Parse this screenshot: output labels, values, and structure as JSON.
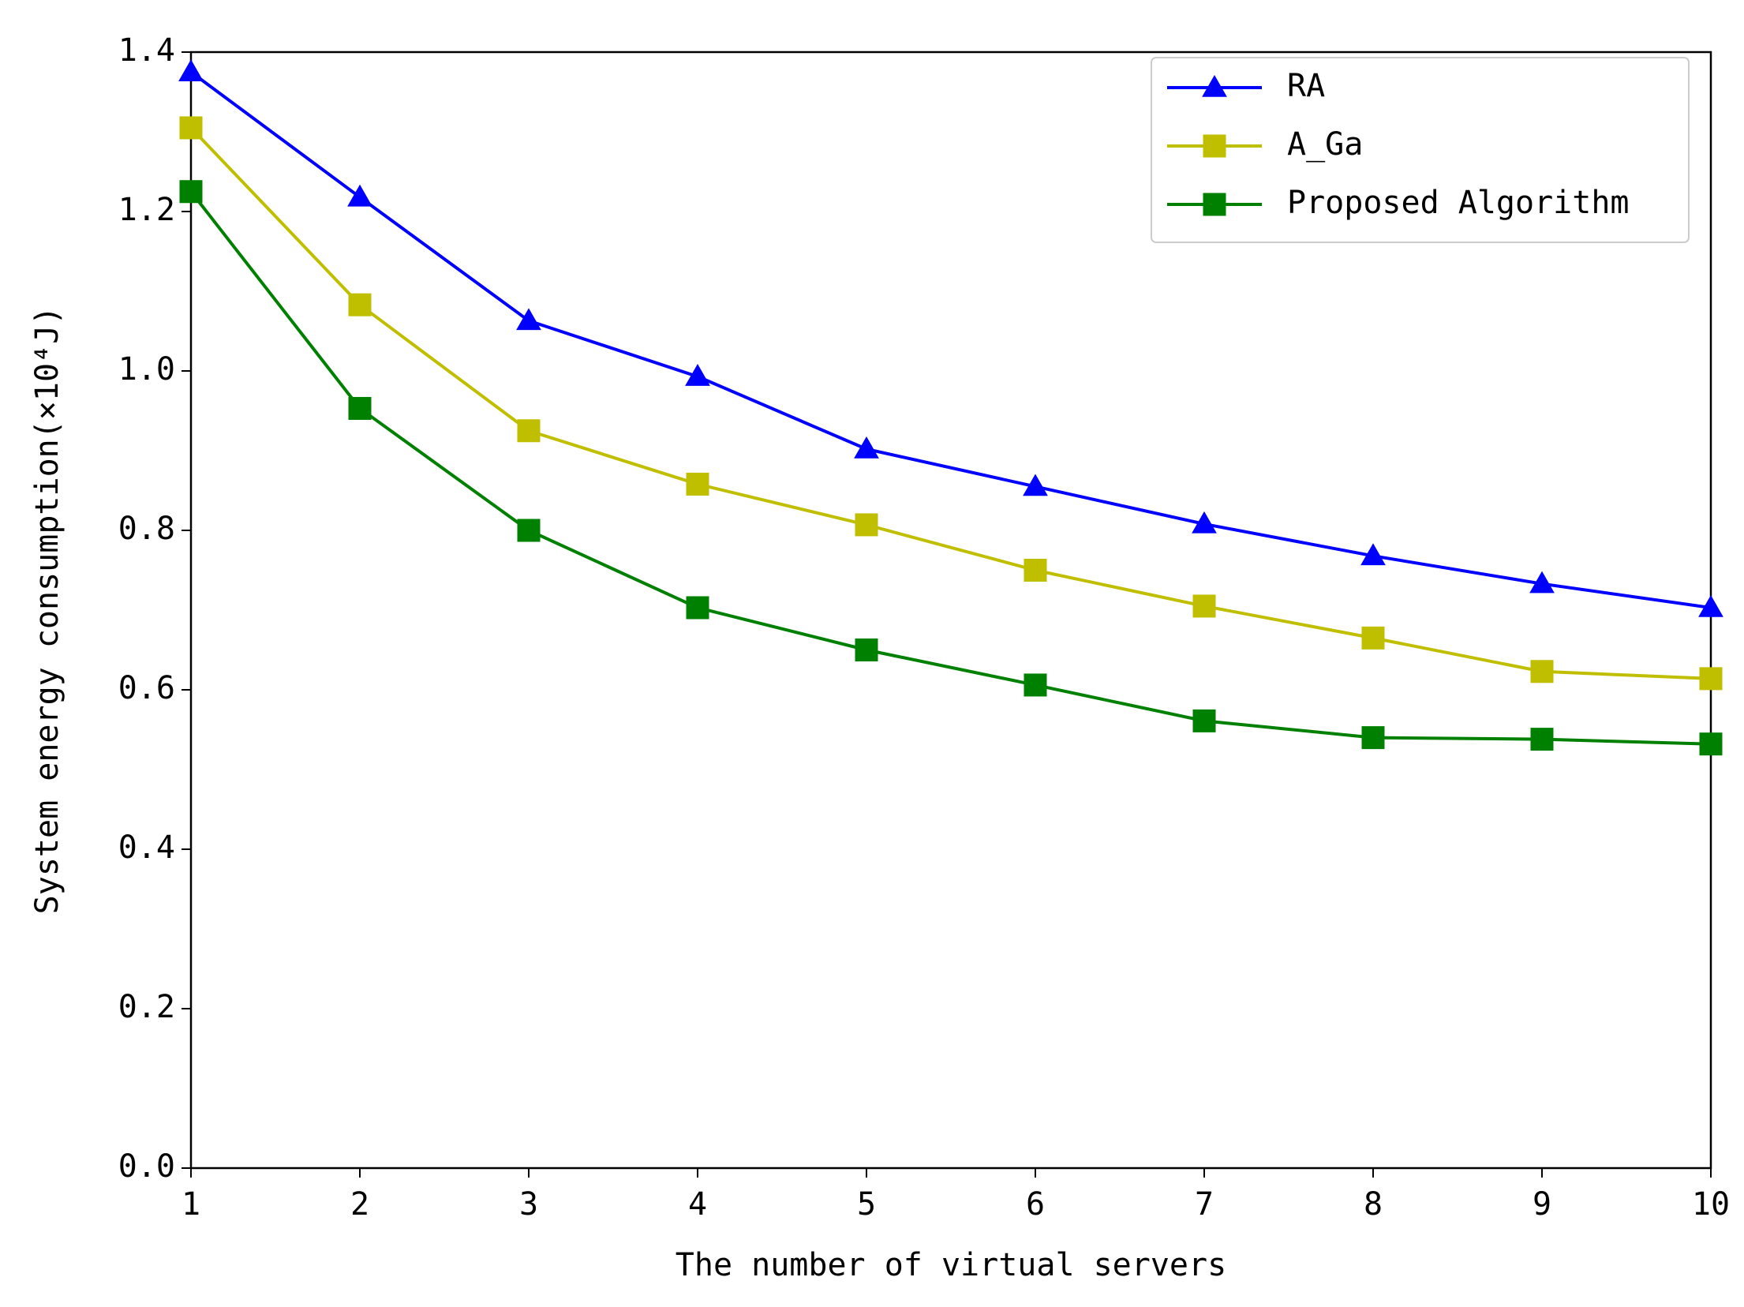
{
  "chart_data": {
    "type": "line",
    "x_label": "The number of virtual servers",
    "y_label": "System energy consumption(×10⁴J)",
    "x": [
      1,
      2,
      3,
      4,
      5,
      6,
      7,
      8,
      9,
      10
    ],
    "xlim": [
      1,
      10
    ],
    "xticks": [
      1,
      2,
      3,
      4,
      5,
      6,
      7,
      8,
      9,
      10
    ],
    "ylim": [
      0,
      1.4
    ],
    "yticks": [
      {
        "value": 0,
        "label": "0.0"
      },
      0.2,
      0.4,
      0.6,
      0.8,
      {
        "value": 1,
        "label": "1.0"
      },
      1.2,
      1.4
    ],
    "legend": "upper right",
    "series": [
      {
        "name": "RA",
        "color": "#0000ff",
        "marker": "triangle",
        "values": [
          1.375,
          1.218,
          1.063,
          0.993,
          0.902,
          0.855,
          0.808,
          0.768,
          0.733,
          0.703
        ]
      },
      {
        "name": "A_Ga",
        "color": "#bfbf00",
        "marker": "square",
        "values": [
          1.305,
          1.083,
          0.925,
          0.858,
          0.807,
          0.75,
          0.705,
          0.665,
          0.623,
          0.614
        ]
      },
      {
        "name": "Proposed Algorithm",
        "color": "#008000",
        "marker": "square",
        "values": [
          1.225,
          0.953,
          0.8,
          0.703,
          0.65,
          0.606,
          0.561,
          0.54,
          0.538,
          0.532
        ]
      }
    ]
  }
}
